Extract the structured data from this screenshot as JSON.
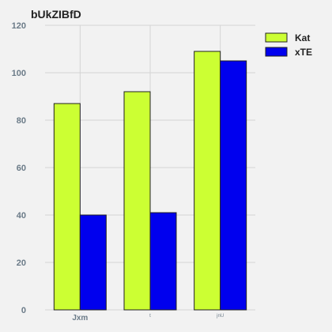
{
  "chart_data": {
    "type": "bar",
    "title": "bUkZIBfD",
    "categories": [
      "Jxm",
      "t",
      "jnU"
    ],
    "series": [
      {
        "name": "Kat",
        "values": [
          87,
          92,
          109
        ],
        "color": "#ccff33"
      },
      {
        "name": "xTE",
        "values": [
          40,
          41,
          105
        ],
        "color": "#0000ee"
      }
    ],
    "ylim": [
      0,
      120
    ],
    "yticks": [
      0,
      20,
      40,
      60,
      80,
      100,
      120
    ],
    "xlabel": "",
    "ylabel": "",
    "grid": true,
    "legend_position": "top-right"
  }
}
